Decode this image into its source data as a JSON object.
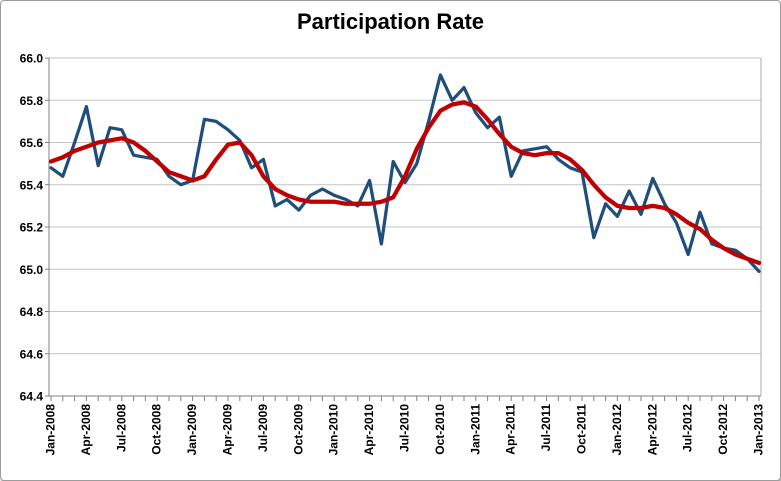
{
  "title": "Participation Rate",
  "colors": {
    "actual": "#1F4E7B",
    "trend": "#C00000",
    "gridline": "#C3C3C3",
    "axis": "#808080",
    "plot_border": "#ABABAB",
    "text": "#000000",
    "frame_border": "#9B9B9B"
  },
  "y_axis": {
    "min": 64.4,
    "max": 66.0,
    "step": 0.2,
    "labels": [
      "66.0",
      "65.8",
      "65.6",
      "65.4",
      "65.2",
      "65.0",
      "64.8",
      "64.6",
      "64.4"
    ]
  },
  "x_axis": {
    "label_every": 3,
    "labels": [
      "Jan-2008",
      "Apr-2008",
      "Jul-2008",
      "Oct-2008",
      "Jan-2009",
      "Apr-2009",
      "Jul-2009",
      "Oct-2009",
      "Jan-2010",
      "Apr-2010",
      "Jul-2010",
      "Oct-2010",
      "Jan-2011",
      "Apr-2011",
      "Jul-2011",
      "Oct-2011",
      "Jan-2012",
      "Apr-2012",
      "Jul-2012",
      "Oct-2012",
      "Jan-2013"
    ]
  },
  "chart_data": {
    "type": "line",
    "title": "Participation Rate",
    "xlabel": "",
    "ylabel": "",
    "ylim": [
      64.4,
      66.0
    ],
    "grid": true,
    "legend": "none",
    "x": [
      "Jan-2008",
      "Feb-2008",
      "Mar-2008",
      "Apr-2008",
      "May-2008",
      "Jun-2008",
      "Jul-2008",
      "Aug-2008",
      "Sep-2008",
      "Oct-2008",
      "Nov-2008",
      "Dec-2008",
      "Jan-2009",
      "Feb-2009",
      "Mar-2009",
      "Apr-2009",
      "May-2009",
      "Jun-2009",
      "Jul-2009",
      "Aug-2009",
      "Sep-2009",
      "Oct-2009",
      "Nov-2009",
      "Dec-2009",
      "Jan-2010",
      "Feb-2010",
      "Mar-2010",
      "Apr-2010",
      "May-2010",
      "Jun-2010",
      "Jul-2010",
      "Aug-2010",
      "Sep-2010",
      "Oct-2010",
      "Nov-2010",
      "Dec-2010",
      "Jan-2011",
      "Feb-2011",
      "Mar-2011",
      "Apr-2011",
      "May-2011",
      "Jun-2011",
      "Jul-2011",
      "Aug-2011",
      "Sep-2011",
      "Oct-2011",
      "Nov-2011",
      "Dec-2011",
      "Jan-2012",
      "Feb-2012",
      "Mar-2012",
      "Apr-2012",
      "May-2012",
      "Jun-2012",
      "Jul-2012",
      "Aug-2012",
      "Sep-2012",
      "Oct-2012",
      "Nov-2012",
      "Dec-2012",
      "Jan-2013"
    ],
    "series": [
      {
        "name": "participation-rate-monthly",
        "color_key": "actual",
        "stroke_width": 3.25,
        "values": [
          65.48,
          65.44,
          65.6,
          65.77,
          65.49,
          65.67,
          65.66,
          65.54,
          65.53,
          65.52,
          65.44,
          65.4,
          65.42,
          65.71,
          65.7,
          65.66,
          65.61,
          65.48,
          65.52,
          65.3,
          65.33,
          65.28,
          65.35,
          65.38,
          65.35,
          65.33,
          65.3,
          65.42,
          65.12,
          65.51,
          65.41,
          65.5,
          65.7,
          65.92,
          65.8,
          65.86,
          65.74,
          65.67,
          65.72,
          65.44,
          65.56,
          65.57,
          65.58,
          65.52,
          65.48,
          65.46,
          65.15,
          65.31,
          65.25,
          65.37,
          65.26,
          65.43,
          65.31,
          65.22,
          65.07,
          65.27,
          65.12,
          65.1,
          65.09,
          65.05,
          64.99
        ]
      },
      {
        "name": "trend",
        "color_key": "trend",
        "stroke_width": 4.25,
        "values": [
          65.51,
          65.53,
          65.56,
          65.58,
          65.6,
          65.61,
          65.62,
          65.6,
          65.56,
          65.51,
          65.46,
          65.44,
          65.42,
          65.44,
          65.52,
          65.59,
          65.6,
          65.54,
          65.44,
          65.38,
          65.35,
          65.33,
          65.32,
          65.32,
          65.32,
          65.31,
          65.31,
          65.31,
          65.32,
          65.34,
          65.44,
          65.57,
          65.67,
          65.75,
          65.78,
          65.79,
          65.77,
          65.71,
          65.64,
          65.58,
          65.55,
          65.54,
          65.55,
          65.55,
          65.52,
          65.47,
          65.4,
          65.34,
          65.3,
          65.29,
          65.29,
          65.3,
          65.29,
          65.26,
          65.22,
          65.19,
          65.14,
          65.1,
          65.07,
          65.05,
          65.03
        ]
      }
    ]
  }
}
